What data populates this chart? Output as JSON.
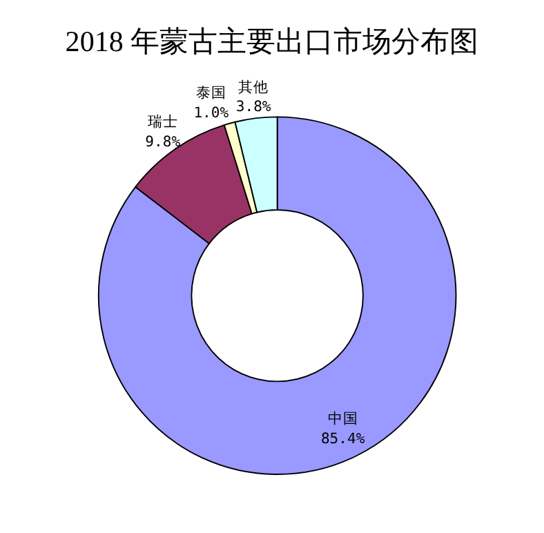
{
  "chart_data": {
    "type": "donut",
    "title": "2018 年蒙古主要出口市场分布图",
    "categories": [
      "中国",
      "瑞士",
      "泰国",
      "其他"
    ],
    "values": [
      85.4,
      9.8,
      1.0,
      3.8
    ],
    "colors": [
      "#9999ff",
      "#993366",
      "#ffffcc",
      "#ccffff"
    ],
    "value_labels": [
      "85.4%",
      "9.8%",
      "1.0%",
      "3.8%"
    ],
    "legend": false
  }
}
